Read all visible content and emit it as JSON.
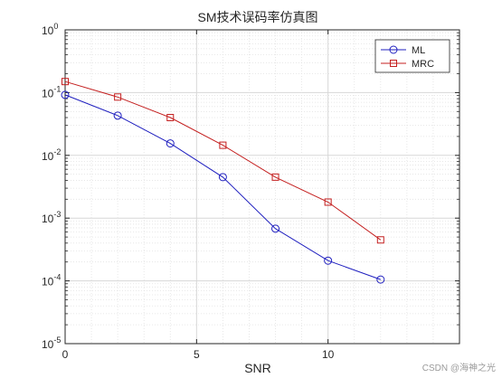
{
  "figure": {
    "watermark": "CSDN @海神之光"
  },
  "chart_data": {
    "type": "line",
    "title": "SM技术误码率仿真图",
    "xlabel": "SNR",
    "ylabel": "",
    "xlim": [
      0,
      15
    ],
    "ylim": [
      1e-05,
      1
    ],
    "yscale": "log",
    "grid": true,
    "legend_position": "top-right",
    "x_ticks": [
      {
        "value": 0,
        "label": "0"
      },
      {
        "value": 5,
        "label": "5"
      },
      {
        "value": 10,
        "label": "10"
      }
    ],
    "y_ticks": [
      {
        "value": 1,
        "base": "10",
        "exp": "0"
      },
      {
        "value": 0.1,
        "base": "10",
        "exp": "-1"
      },
      {
        "value": 0.01,
        "base": "10",
        "exp": "-2"
      },
      {
        "value": 0.001,
        "base": "10",
        "exp": "-3"
      },
      {
        "value": 0.0001,
        "base": "10",
        "exp": "-4"
      },
      {
        "value": 1e-05,
        "base": "10",
        "exp": "-5"
      }
    ],
    "series": [
      {
        "name": "ML",
        "color": "#1f1fbf",
        "marker": "circle",
        "x": [
          0,
          2,
          4,
          6,
          8,
          10,
          12
        ],
        "y": [
          0.092,
          0.043,
          0.0155,
          0.0045,
          0.00068,
          0.00021,
          0.000105
        ]
      },
      {
        "name": "MRC",
        "color": "#c41f1f",
        "marker": "square",
        "x": [
          0,
          2,
          4,
          6,
          8,
          10,
          12
        ],
        "y": [
          0.15,
          0.085,
          0.04,
          0.0145,
          0.0045,
          0.0018,
          0.00045
        ]
      }
    ]
  }
}
